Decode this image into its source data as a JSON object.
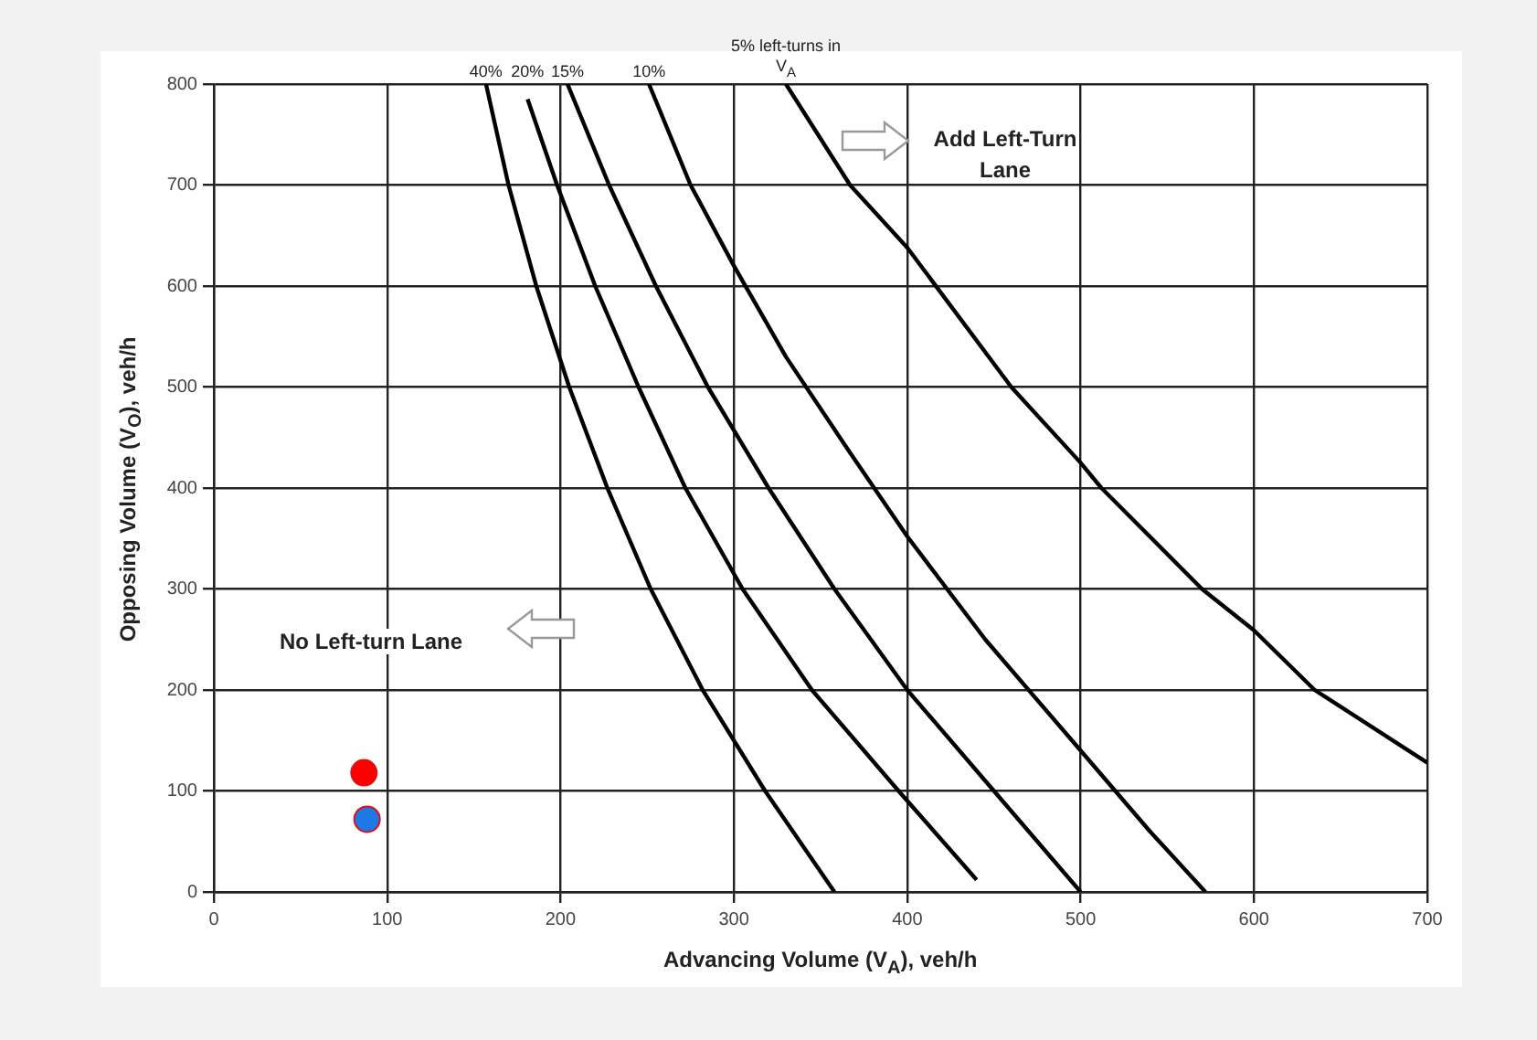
{
  "chart_data": {
    "type": "line",
    "xlabel": "Advancing Volume (V$_{A}$), veh/h",
    "ylabel": "Opposing Volume (V$_{O}$), veh/h",
    "xlim": [
      0,
      700
    ],
    "xticks": [
      0,
      100,
      200,
      300,
      400,
      500,
      600,
      700
    ],
    "ylim": [
      0,
      800
    ],
    "yticks": [
      0,
      100,
      200,
      300,
      400,
      500,
      600,
      700,
      800
    ],
    "grid": true,
    "legend": false,
    "marker": "none",
    "line_style": "solid",
    "annotations": [
      "Add Left-Turn Lane",
      "No Left-turn Lane"
    ],
    "series": [
      {
        "name": "40%",
        "color": "#000000",
        "x": [
          157,
          170,
          186,
          205,
          227,
          252,
          282,
          318,
          358
        ],
        "values": [
          800,
          700,
          600,
          500,
          400,
          300,
          200,
          100,
          0
        ]
      },
      {
        "name": "20%",
        "color": "#000000",
        "x": [
          181,
          198,
          220,
          245,
          272,
          305,
          345,
          395,
          440
        ],
        "values": [
          785,
          700,
          600,
          500,
          400,
          300,
          200,
          100,
          12
        ]
      },
      {
        "name": "15%",
        "color": "#000000",
        "x": [
          204,
          228,
          255,
          285,
          320,
          358,
          400,
          450,
          500
        ],
        "values": [
          800,
          700,
          600,
          500,
          400,
          300,
          200,
          100,
          0
        ]
      },
      {
        "name": "10%",
        "color": "#000000",
        "x": [
          251,
          275,
          300,
          330,
          365,
          400,
          445,
          500,
          540,
          572
        ],
        "values": [
          800,
          700,
          620,
          530,
          440,
          352,
          250,
          140,
          60,
          0
        ]
      },
      {
        "name": "5% left-turns in V$_{A}$",
        "color": "#000000",
        "x": [
          330,
          367,
          400,
          460,
          500,
          512,
          570,
          600,
          635,
          700
        ],
        "values": [
          800,
          700,
          638,
          500,
          425,
          400,
          300,
          259,
          200,
          128
        ]
      },
      {
        "type": "scatter",
        "marker": "circle",
        "color": "#ff0000",
        "x": [
          86.6
        ],
        "values": [
          118
        ]
      },
      {
        "type": "scatter",
        "marker": "circle",
        "color": "#1e78e6",
        "x": [
          88.4
        ],
        "values": [
          72
        ]
      }
    ]
  }
}
